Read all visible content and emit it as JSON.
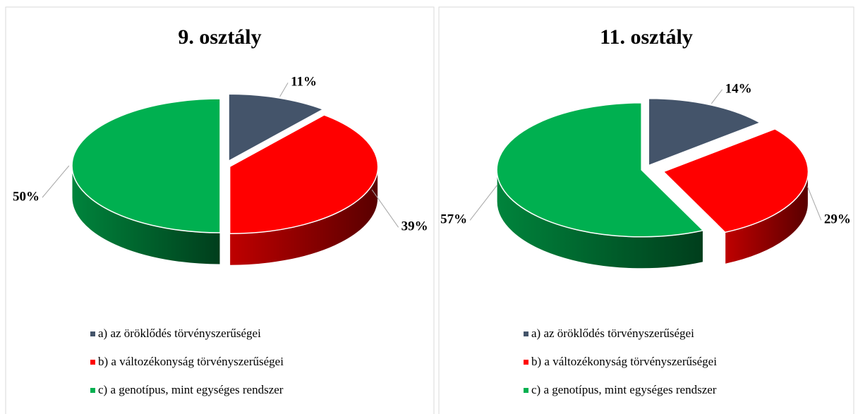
{
  "chart_data": [
    {
      "type": "pie",
      "title": "9. osztály",
      "categories": [
        "a) az öröklődés törvényszerűségei",
        "b) a változékonyság törvényszerűségei",
        "c) a genotípus, mint egységes rendszer"
      ],
      "values": [
        11,
        39,
        50
      ],
      "value_labels": [
        "11%",
        "39%",
        "50%"
      ],
      "colors": [
        "#44546a",
        "#ff0000",
        "#00b050"
      ]
    },
    {
      "type": "pie",
      "title": "11. osztály",
      "categories": [
        "a) az öröklődés törvényszerűségei",
        "b) a változékonyság törvényszerűségei",
        "c) a genotípus, mint egységes rendszer"
      ],
      "values": [
        14,
        29,
        57
      ],
      "value_labels": [
        "14%",
        "29%",
        "57%"
      ],
      "colors": [
        "#44546a",
        "#ff0000",
        "#00b050"
      ]
    }
  ]
}
